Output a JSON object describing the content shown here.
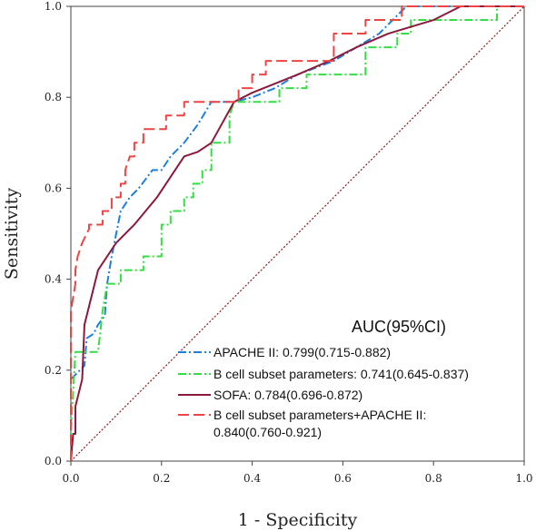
{
  "chart_data": {
    "type": "line",
    "title": "",
    "xlabel": "1 - Specificity",
    "ylabel": "Sensitivity",
    "xlim": [
      0,
      1
    ],
    "ylim": [
      0,
      1
    ],
    "x_ticks": [
      "0.0",
      "0.2",
      "0.4",
      "0.6",
      "0.8",
      "1.0"
    ],
    "y_ticks": [
      "0.0",
      "0.2",
      "0.4",
      "0.6",
      "0.8",
      "1.0"
    ],
    "grid": false,
    "legend": {
      "title": "AUC(95%CI)",
      "placement": "bottom-right",
      "entries": [
        {
          "lines": [
            "APACHE II: 0.799(0.715-0.882)"
          ]
        },
        {
          "lines": [
            "B cell subset parameters: 0.741(0.645-0.837)"
          ]
        },
        {
          "lines": [
            "SOFA: 0.784(0.696-0.872)"
          ]
        },
        {
          "lines": [
            "B cell subset parameters+APACHE II:",
            "0.840(0.760-0.921)"
          ]
        }
      ]
    },
    "reference_line": {
      "points": [
        [
          0,
          0
        ],
        [
          1,
          1
        ]
      ],
      "color": "#8b1a1a",
      "style": "dotted"
    },
    "series": [
      {
        "name": "APACHE II",
        "color": "#1f7fd9",
        "style": "dash-dot",
        "points": [
          [
            0,
            0.18
          ],
          [
            0.01,
            0.19
          ],
          [
            0.02,
            0.2
          ],
          [
            0.03,
            0.21
          ],
          [
            0.035,
            0.27
          ],
          [
            0.05,
            0.28
          ],
          [
            0.06,
            0.3
          ],
          [
            0.075,
            0.32
          ],
          [
            0.08,
            0.39
          ],
          [
            0.09,
            0.45
          ],
          [
            0.1,
            0.5
          ],
          [
            0.11,
            0.55
          ],
          [
            0.13,
            0.58
          ],
          [
            0.15,
            0.6
          ],
          [
            0.18,
            0.64
          ],
          [
            0.2,
            0.64
          ],
          [
            0.22,
            0.67
          ],
          [
            0.25,
            0.7
          ],
          [
            0.28,
            0.74
          ],
          [
            0.31,
            0.79
          ],
          [
            0.36,
            0.79
          ],
          [
            0.4,
            0.8
          ],
          [
            0.45,
            0.82
          ],
          [
            0.5,
            0.85
          ],
          [
            0.58,
            0.88
          ],
          [
            0.63,
            0.91
          ],
          [
            0.68,
            0.94
          ],
          [
            0.71,
            0.97
          ],
          [
            0.74,
            1.0
          ],
          [
            1.0,
            1.0
          ]
        ]
      },
      {
        "name": "B cell subset parameters",
        "color": "#33dd44",
        "style": "dash-dot",
        "points": [
          [
            0,
            0
          ],
          [
            0,
            0.07
          ],
          [
            0.005,
            0.15
          ],
          [
            0.01,
            0.24
          ],
          [
            0.06,
            0.24
          ],
          [
            0.07,
            0.33
          ],
          [
            0.08,
            0.39
          ],
          [
            0.11,
            0.39
          ],
          [
            0.11,
            0.42
          ],
          [
            0.16,
            0.42
          ],
          [
            0.16,
            0.45
          ],
          [
            0.2,
            0.45
          ],
          [
            0.2,
            0.52
          ],
          [
            0.22,
            0.52
          ],
          [
            0.22,
            0.55
          ],
          [
            0.25,
            0.55
          ],
          [
            0.25,
            0.58
          ],
          [
            0.27,
            0.58
          ],
          [
            0.27,
            0.61
          ],
          [
            0.29,
            0.61
          ],
          [
            0.29,
            0.64
          ],
          [
            0.31,
            0.64
          ],
          [
            0.31,
            0.7
          ],
          [
            0.35,
            0.7
          ],
          [
            0.35,
            0.76
          ],
          [
            0.36,
            0.79
          ],
          [
            0.46,
            0.79
          ],
          [
            0.46,
            0.82
          ],
          [
            0.52,
            0.82
          ],
          [
            0.52,
            0.85
          ],
          [
            0.65,
            0.85
          ],
          [
            0.65,
            0.91
          ],
          [
            0.72,
            0.91
          ],
          [
            0.72,
            0.94
          ],
          [
            0.75,
            0.94
          ],
          [
            0.75,
            0.97
          ],
          [
            0.94,
            0.97
          ],
          [
            0.94,
            1.0
          ],
          [
            1.0,
            1.0
          ]
        ]
      },
      {
        "name": "SOFA",
        "color": "#8b1a3a",
        "style": "solid",
        "points": [
          [
            0,
            0
          ],
          [
            0.005,
            0.06
          ],
          [
            0.01,
            0.06
          ],
          [
            0.01,
            0.12
          ],
          [
            0.025,
            0.18
          ],
          [
            0.03,
            0.3
          ],
          [
            0.06,
            0.42
          ],
          [
            0.1,
            0.48
          ],
          [
            0.14,
            0.52
          ],
          [
            0.19,
            0.58
          ],
          [
            0.25,
            0.67
          ],
          [
            0.28,
            0.68
          ],
          [
            0.31,
            0.7
          ],
          [
            0.36,
            0.79
          ],
          [
            0.4,
            0.81
          ],
          [
            0.45,
            0.83
          ],
          [
            0.5,
            0.85
          ],
          [
            0.57,
            0.88
          ],
          [
            0.63,
            0.91
          ],
          [
            0.7,
            0.94
          ],
          [
            0.8,
            0.97
          ],
          [
            0.86,
            1.0
          ],
          [
            1.0,
            1.0
          ]
        ]
      },
      {
        "name": "B cell subset parameters+APACHE II",
        "color": "#ee4444",
        "style": "dashed",
        "points": [
          [
            0,
            0
          ],
          [
            0,
            0.33
          ],
          [
            0.01,
            0.39
          ],
          [
            0.01,
            0.42
          ],
          [
            0.015,
            0.45
          ],
          [
            0.025,
            0.48
          ],
          [
            0.04,
            0.51
          ],
          [
            0.04,
            0.52
          ],
          [
            0.07,
            0.52
          ],
          [
            0.07,
            0.55
          ],
          [
            0.09,
            0.55
          ],
          [
            0.09,
            0.58
          ],
          [
            0.11,
            0.58
          ],
          [
            0.11,
            0.61
          ],
          [
            0.12,
            0.61
          ],
          [
            0.12,
            0.64
          ],
          [
            0.13,
            0.67
          ],
          [
            0.14,
            0.67
          ],
          [
            0.14,
            0.7
          ],
          [
            0.16,
            0.7
          ],
          [
            0.16,
            0.73
          ],
          [
            0.21,
            0.73
          ],
          [
            0.21,
            0.76
          ],
          [
            0.25,
            0.76
          ],
          [
            0.25,
            0.79
          ],
          [
            0.37,
            0.79
          ],
          [
            0.37,
            0.82
          ],
          [
            0.4,
            0.82
          ],
          [
            0.4,
            0.85
          ],
          [
            0.43,
            0.85
          ],
          [
            0.43,
            0.88
          ],
          [
            0.58,
            0.88
          ],
          [
            0.58,
            0.94
          ],
          [
            0.65,
            0.94
          ],
          [
            0.65,
            0.97
          ],
          [
            0.73,
            0.97
          ],
          [
            0.73,
            1.0
          ],
          [
            1.0,
            1.0
          ]
        ]
      }
    ]
  }
}
